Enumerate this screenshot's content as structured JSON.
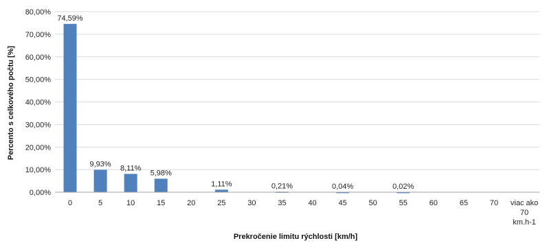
{
  "chart_data": {
    "type": "bar",
    "xlabel": "Prekročenie limitu rýchlosti [km/h]",
    "ylabel": "Percento s celkového počtu [%]",
    "categories": [
      "0",
      "5",
      "10",
      "15",
      "20",
      "25",
      "30",
      "35",
      "40",
      "45",
      "50",
      "55",
      "60",
      "65",
      "70",
      "viac ako 70 km.h-1"
    ],
    "category_lines": [
      [
        "0"
      ],
      [
        "5"
      ],
      [
        "10"
      ],
      [
        "15"
      ],
      [
        "20"
      ],
      [
        "25"
      ],
      [
        "30"
      ],
      [
        "35"
      ],
      [
        "40"
      ],
      [
        "45"
      ],
      [
        "50"
      ],
      [
        "55"
      ],
      [
        "60"
      ],
      [
        "65"
      ],
      [
        "70"
      ],
      [
        "viac ako",
        "70",
        "km.h-1"
      ]
    ],
    "values": [
      74.59,
      9.93,
      8.11,
      5.98,
      0,
      1.11,
      0,
      0.21,
      0,
      0.04,
      0,
      0.02,
      0,
      0,
      0,
      0
    ],
    "data_labels": [
      "74,59%",
      "9,93%",
      "8,11%",
      "5,98%",
      "",
      "1,11%",
      "",
      "0,21%",
      "",
      "0,04%",
      "",
      "0,02%",
      "",
      "",
      "",
      ""
    ],
    "ylim": [
      0,
      80
    ],
    "yticks": [
      0,
      10,
      20,
      30,
      40,
      50,
      60,
      70,
      80
    ],
    "ytick_labels": [
      "0,00%",
      "10,00%",
      "20,00%",
      "30,00%",
      "40,00%",
      "50,00%",
      "60,00%",
      "70,00%",
      "80,00%"
    ],
    "grid": true,
    "legend": "none",
    "bar_color": "#4f81bd",
    "grid_color": "#d9d9d9"
  }
}
